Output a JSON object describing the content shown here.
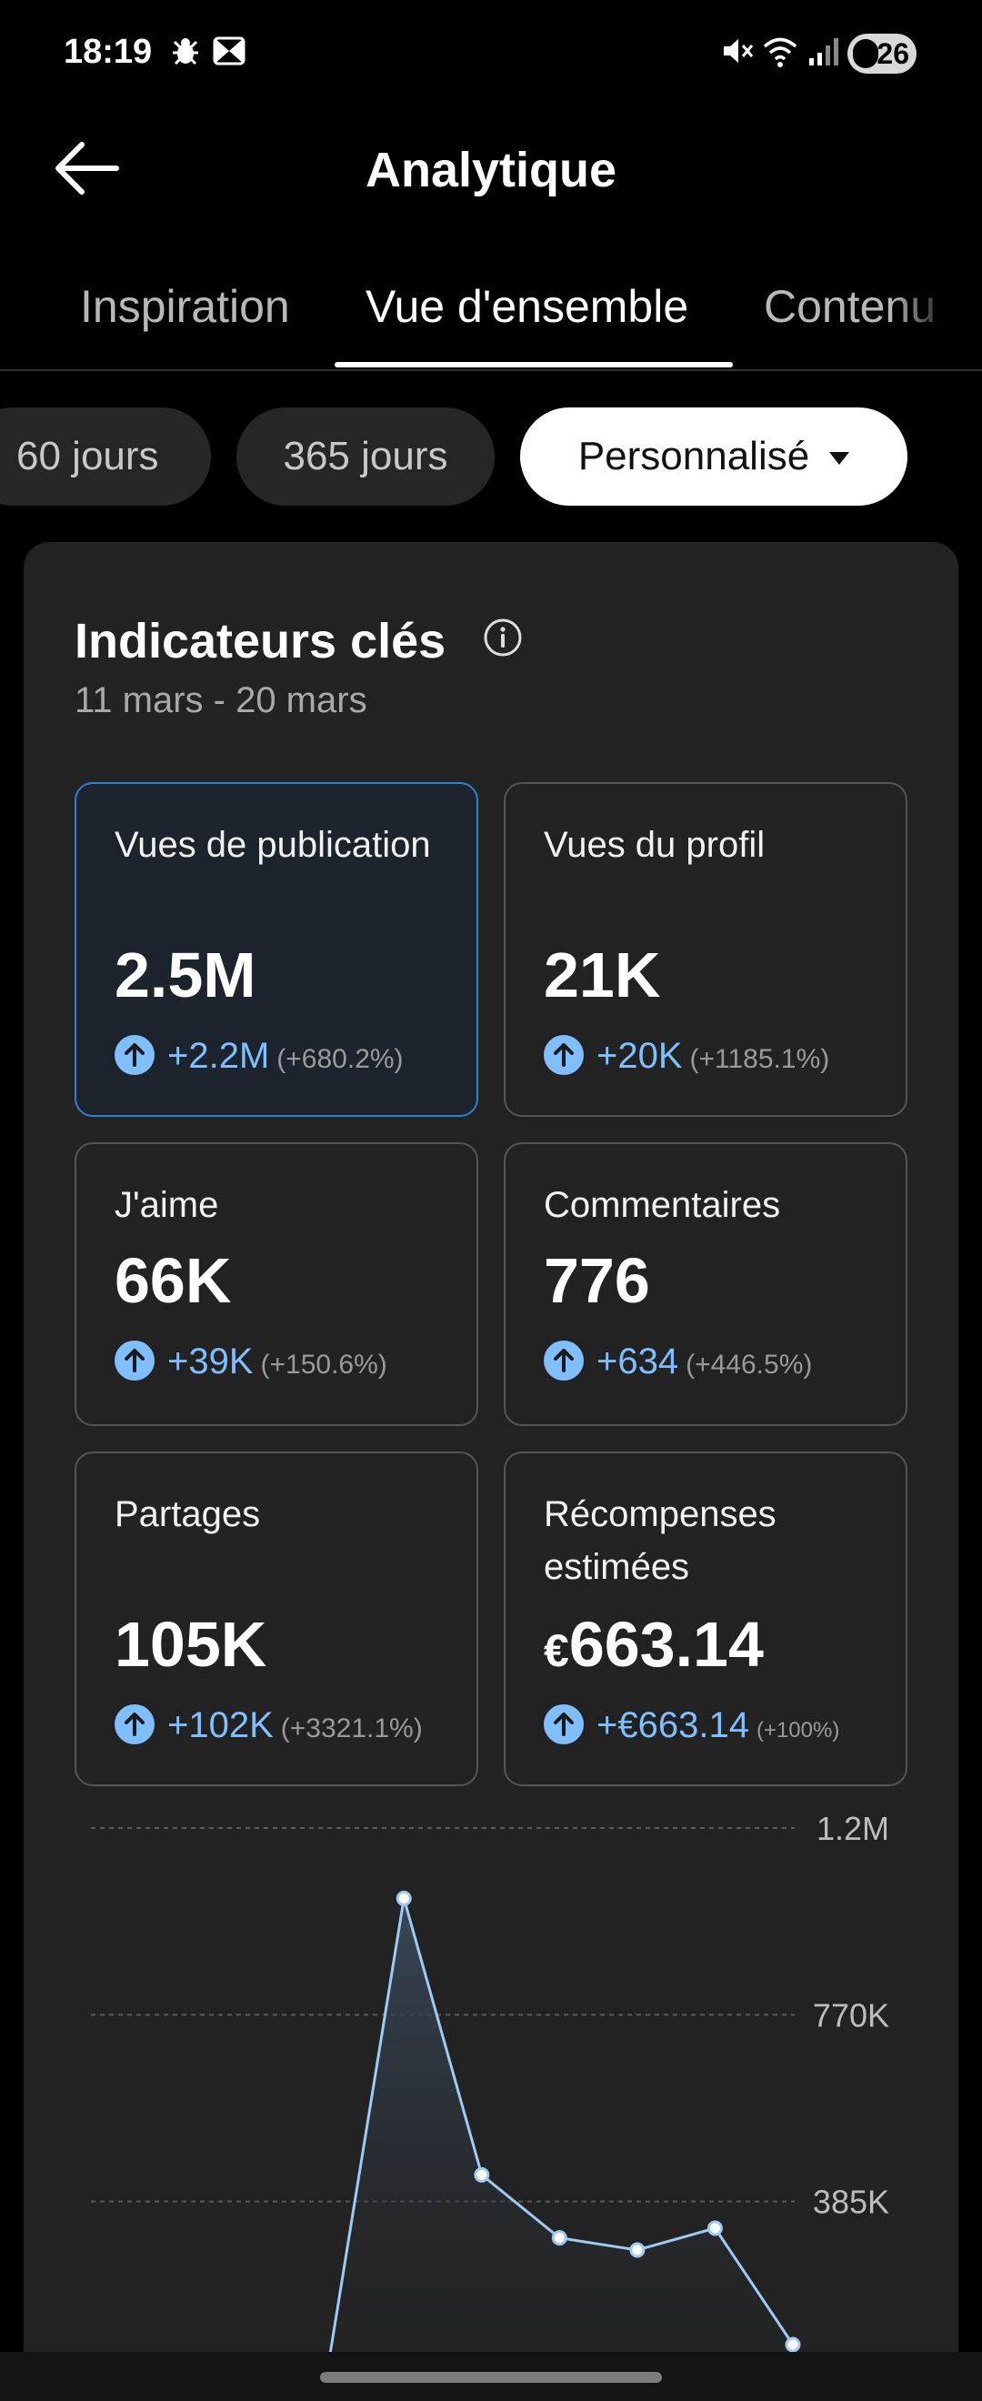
{
  "status": {
    "time": "18:19",
    "battery": "26",
    "left_icons": [
      "bug-icon",
      "bowtie-icon"
    ],
    "right_icons": [
      "mute-icon",
      "wifi-icon",
      "signal-icon"
    ]
  },
  "appbar": {
    "title": "Analytique"
  },
  "tabs": [
    {
      "label": "Inspiration",
      "active": false
    },
    {
      "label": "Vue d'ensemble",
      "active": true
    },
    {
      "label": "Contenu",
      "active": false
    }
  ],
  "ranges": [
    {
      "label": "60 jours",
      "selected": false
    },
    {
      "label": "365 jours",
      "selected": false
    },
    {
      "label": "Personnalisé",
      "selected": true
    }
  ],
  "key_metrics": {
    "title": "Indicateurs clés",
    "period": "11 mars - 20 mars",
    "items": [
      {
        "label": "Vues de publication",
        "value": "2.5M",
        "delta": "+2.2M",
        "pct": "(+680.2%)",
        "selected": true
      },
      {
        "label": "Vues du profil",
        "value": "21K",
        "delta": "+20K",
        "pct": "(+1185.1%)",
        "selected": false
      },
      {
        "label": "J'aime",
        "value": "66K",
        "delta": "+39K",
        "pct": "(+150.6%)",
        "selected": false
      },
      {
        "label": "Commentaires",
        "value": "776",
        "delta": "+634",
        "pct": "(+446.5%)",
        "selected": false
      },
      {
        "label": "Partages",
        "value": "105K",
        "delta": "+102K",
        "pct": "(+3321.1%)",
        "selected": false
      },
      {
        "label": "Récompenses estimées",
        "currency": "€",
        "value": "663.14",
        "delta": "+€663.14",
        "pct": "(+100%)",
        "selected": false
      }
    ]
  },
  "colors": {
    "accent": "#7fbfff",
    "selected_border": "#2f7fd6",
    "card": "#222222",
    "line": "#9fcaf5"
  },
  "chart_data": {
    "type": "area",
    "y_ticks": [
      "1.2M",
      "770K",
      "385K"
    ],
    "y_tick_values": [
      1155000,
      770000,
      385000
    ],
    "ylim": [
      0,
      1155000
    ],
    "values": [
      0,
      2000,
      8000,
      20000,
      1010000,
      440000,
      310000,
      285000,
      330000,
      90000
    ],
    "grid": true
  }
}
